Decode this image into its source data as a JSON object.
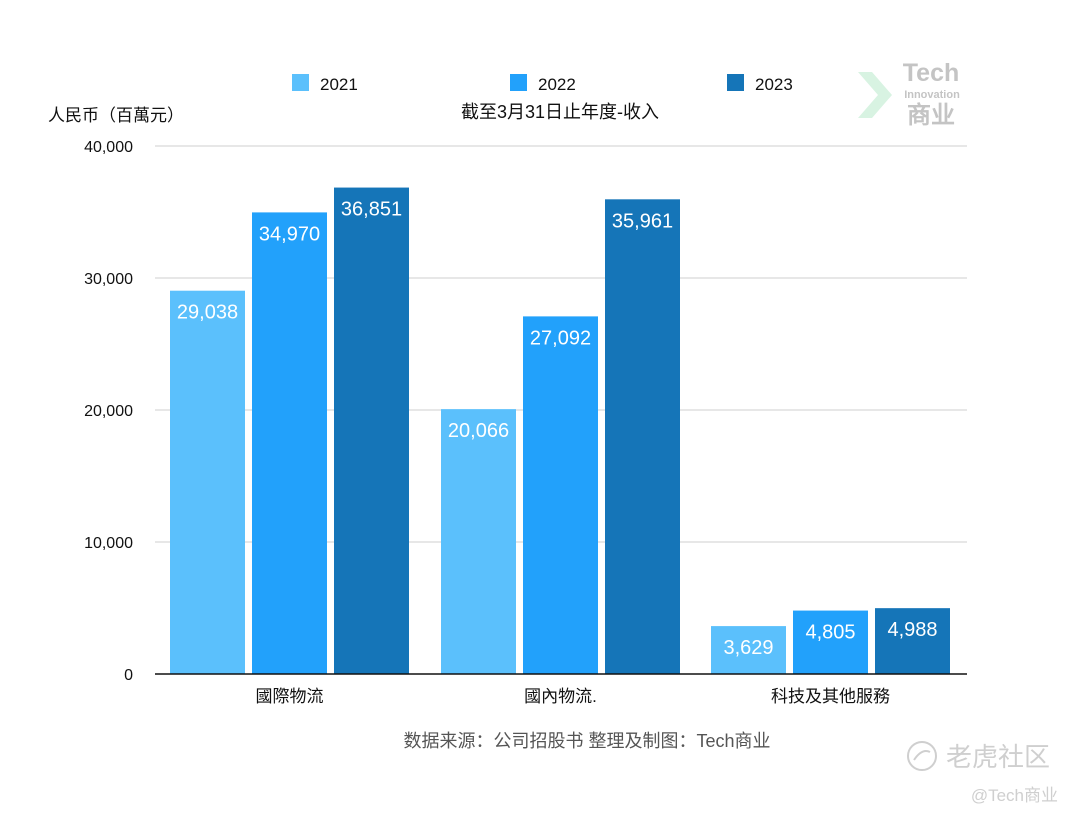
{
  "chart_data": {
    "type": "bar",
    "title": "截至3月31日止年度-收入",
    "ylabel": "人民币（百萬元）",
    "xlabel": "",
    "categories": [
      "國際物流",
      "國內物流.",
      "科技及其他服務"
    ],
    "series": [
      {
        "name": "2021",
        "color": "#5bc0fc",
        "values": [
          29038,
          20066,
          3629
        ],
        "labels": [
          "29,038",
          "20,066",
          "3,629"
        ]
      },
      {
        "name": "2022",
        "color": "#22a1fb",
        "values": [
          34970,
          27092,
          4805
        ],
        "labels": [
          "34,970",
          "27,092",
          "4,805"
        ]
      },
      {
        "name": "2023",
        "color": "#1575b8",
        "values": [
          36851,
          35961,
          4988
        ],
        "labels": [
          "36,851",
          "35,961",
          "4,988"
        ]
      }
    ],
    "ylim": [
      0,
      40000
    ],
    "yticks": [
      0,
      10000,
      20000,
      30000,
      40000
    ],
    "ytick_labels": [
      "0",
      "10,000",
      "20,000",
      "30,000",
      "40,000"
    ],
    "grid": true,
    "legend_position": "top"
  },
  "source_note": "数据来源：公司招股书  整理及制图：Tech商业",
  "logo": {
    "line1": "Tech",
    "line2": "Innovation",
    "line3": "商业"
  },
  "watermark": {
    "community": "老虎社区",
    "handle": "@Tech商业"
  }
}
